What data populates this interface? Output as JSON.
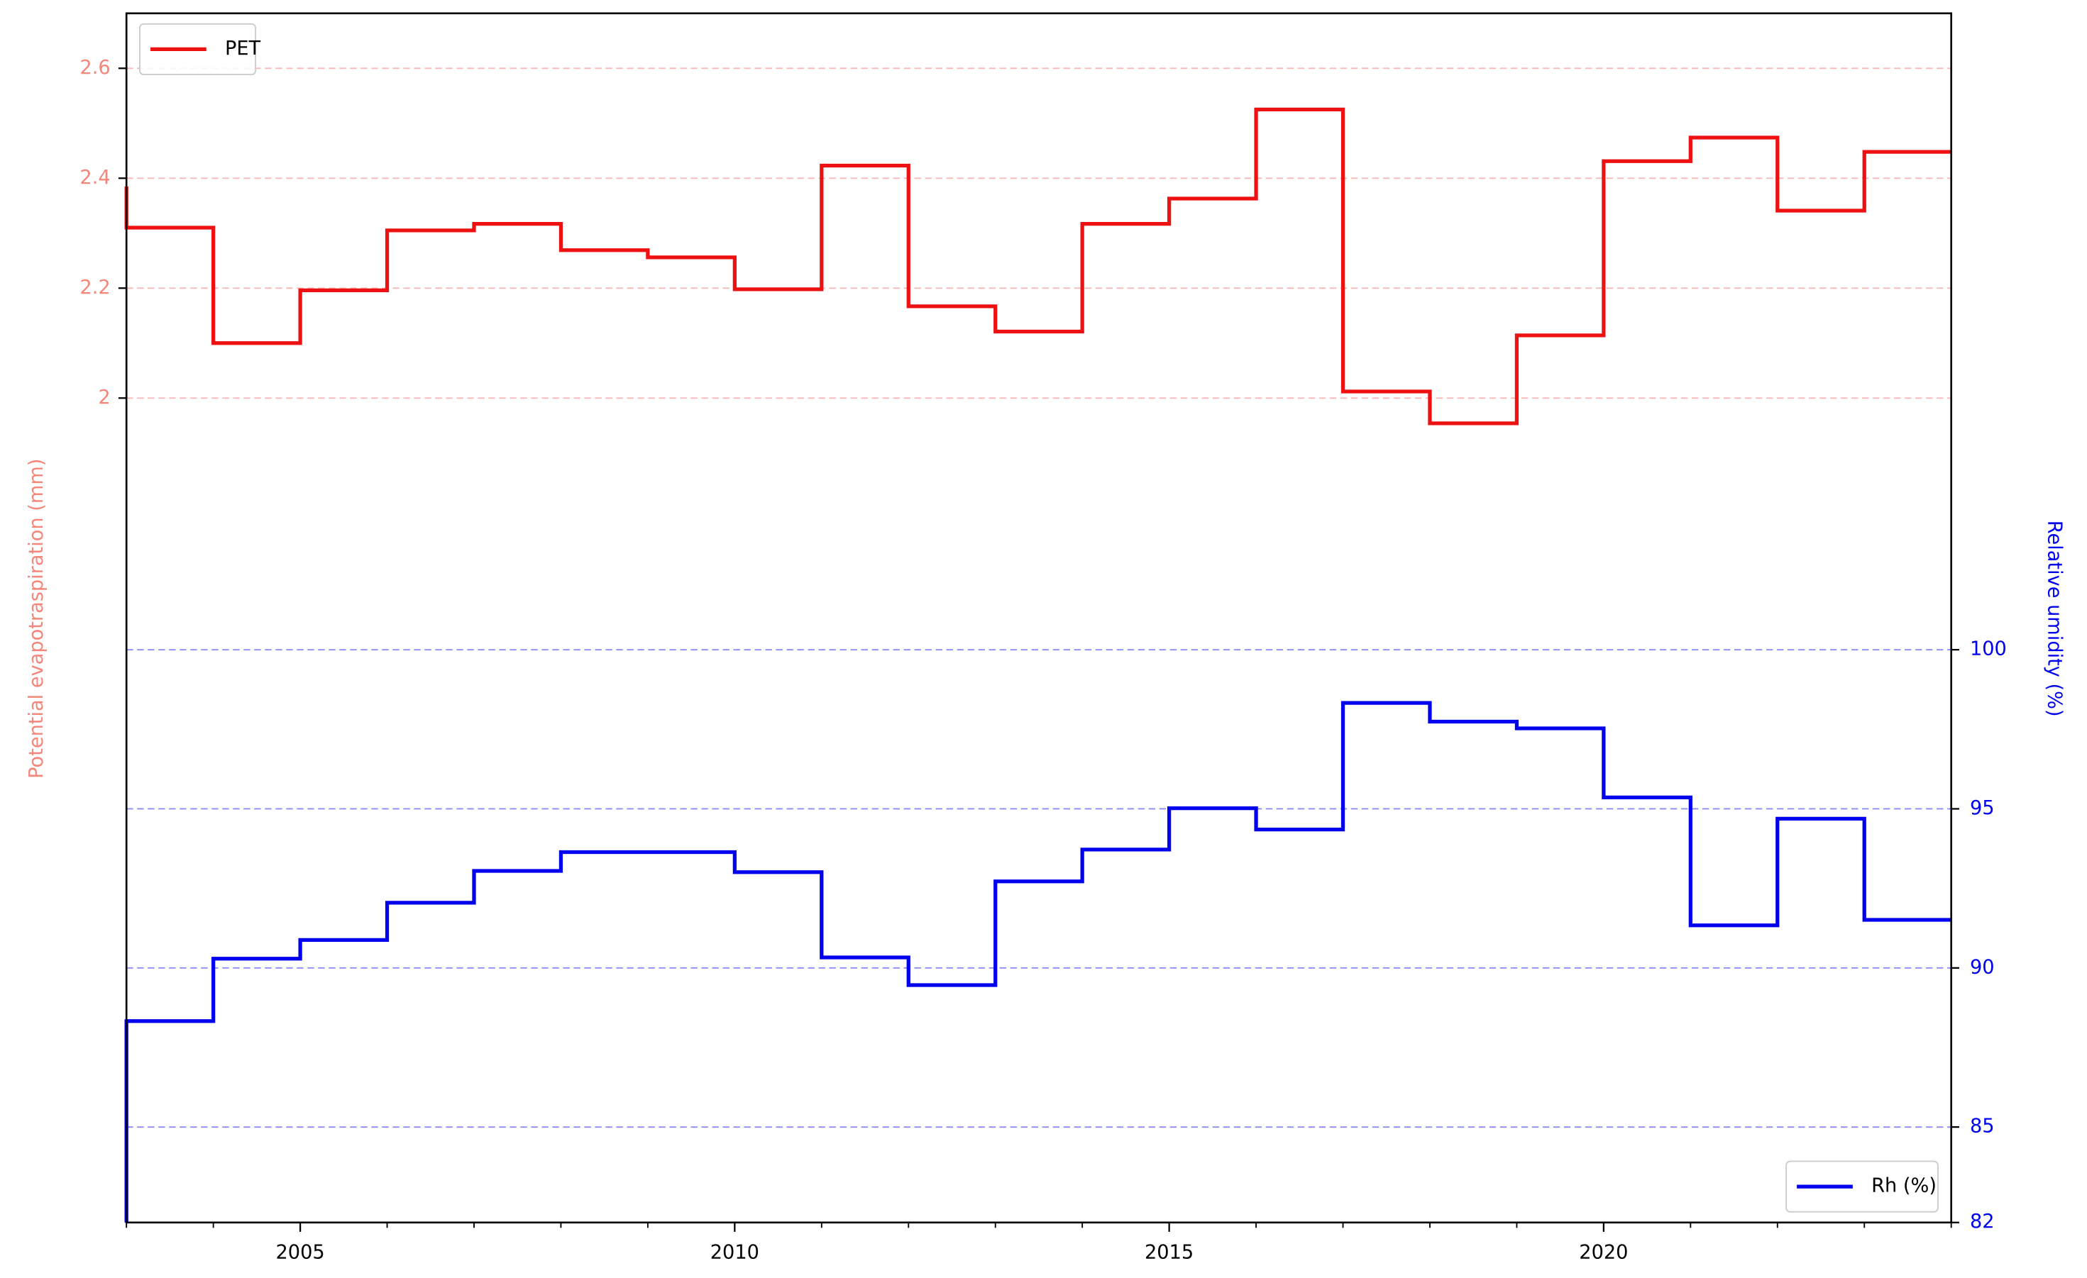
{
  "chart_data": {
    "type": "line",
    "step": "pre",
    "x": [
      2003,
      2004,
      2005,
      2006,
      2007,
      2008,
      2009,
      2010,
      2011,
      2012,
      2013,
      2014,
      2015,
      2016,
      2017,
      2018,
      2019,
      2020,
      2021,
      2022,
      2023,
      2024
    ],
    "xlim": [
      2003,
      2024
    ],
    "xticks": [
      2005,
      2010,
      2015,
      2020
    ],
    "ylabel": "Potential evapotraspiration  (mm)",
    "ylabel_color": "#f4867a",
    "ylim": [
      0.5,
      2.7
    ],
    "yticks": [
      2.0,
      2.2,
      2.4,
      2.6
    ],
    "y2label": "Relative umidity (%)",
    "y2label_color": "#0000ee",
    "y2lim": [
      82,
      120
    ],
    "y2ticks": [
      82,
      85,
      90,
      95,
      100
    ],
    "grid": true,
    "series": [
      {
        "name": "PET",
        "color": "#ee1111",
        "axis": "y",
        "legend": "upper left",
        "values": [
          2.385,
          2.31,
          2.1,
          2.196,
          2.305,
          2.317,
          2.269,
          2.256,
          2.198,
          2.423,
          2.167,
          2.121,
          2.317,
          2.363,
          2.525,
          2.012,
          1.954,
          2.114,
          2.431,
          2.474,
          2.341,
          2.448
        ]
      },
      {
        "name": "Rh (%)",
        "color": "#0000ee",
        "axis": "y2",
        "legend": "lower right",
        "values": [
          82,
          88.33,
          90.29,
          90.88,
          92.05,
          93.05,
          93.64,
          93.64,
          93.01,
          90.33,
          89.46,
          92.72,
          93.72,
          95.02,
          94.35,
          98.33,
          97.74,
          97.53,
          95.36,
          91.34,
          94.69,
          91.51
        ]
      }
    ]
  }
}
